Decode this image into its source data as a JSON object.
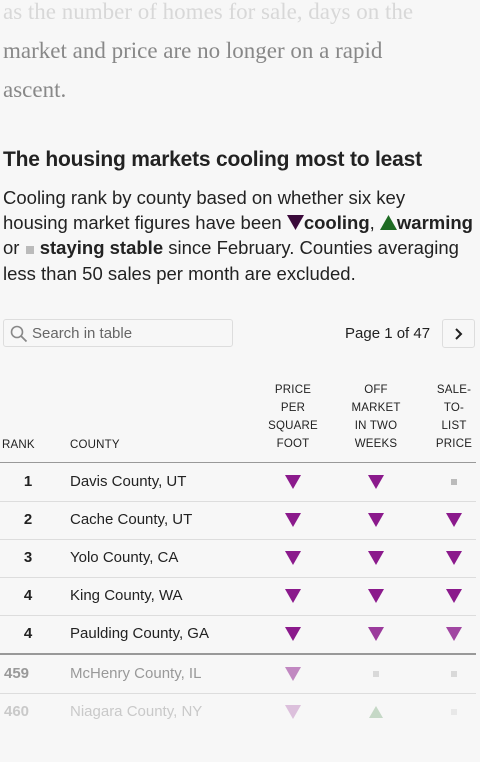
{
  "intro": {
    "line1": "as the number of homes for sale, days on the",
    "line2": "market and price are no longer on a rapid",
    "line3": "ascent."
  },
  "heading": "The housing markets cooling most to least",
  "description": {
    "part1": "Cooling rank by county based on whether six key housing market figures have been ",
    "cooling": "cooling",
    "comma": ",",
    "warming": "warming",
    "or": " or ",
    "stable": "staying stable",
    "part2": " since February. Counties averaging less than 50 sales per month are excluded."
  },
  "search": {
    "placeholder": "Search in table"
  },
  "pagination": {
    "label": "Page 1 of 47"
  },
  "columns": {
    "rank": "RANK",
    "county": "COUNTY",
    "price_per_sqft": [
      "PRICE",
      "PER",
      "SQUARE",
      "FOOT"
    ],
    "off_market": [
      "OFF",
      "MARKET",
      "IN TWO",
      "WEEKS"
    ],
    "sale_to_list": [
      "SALE-",
      "TO-",
      "LIST",
      "PRICE"
    ]
  },
  "colors": {
    "cooling": "#8b1a8c",
    "cooling_dark": "#3a0a3a",
    "warming": "#2e7d32",
    "stable": "#bbbbbb"
  },
  "rows": [
    {
      "rank": "1",
      "county": "Davis County, UT",
      "price": "cooling",
      "offmarket": "cooling",
      "salelist": "stable"
    },
    {
      "rank": "2",
      "county": "Cache County, UT",
      "price": "cooling",
      "offmarket": "cooling",
      "salelist": "cooling"
    },
    {
      "rank": "3",
      "county": "Yolo County, CA",
      "price": "cooling",
      "offmarket": "cooling",
      "salelist": "cooling"
    },
    {
      "rank": "4",
      "county": "King County, WA",
      "price": "cooling",
      "offmarket": "cooling",
      "salelist": "cooling"
    },
    {
      "rank": "4",
      "county": "Paulding County, GA",
      "price": "cooling",
      "offmarket": "cooling",
      "salelist": "cooling"
    },
    {
      "rank": "459",
      "county": "McHenry County, IL",
      "price": "cooling",
      "offmarket": "stable",
      "salelist": "stable"
    },
    {
      "rank": "460",
      "county": "Niagara County, NY",
      "price": "cooling",
      "offmarket": "warming",
      "salelist": "stable"
    }
  ]
}
